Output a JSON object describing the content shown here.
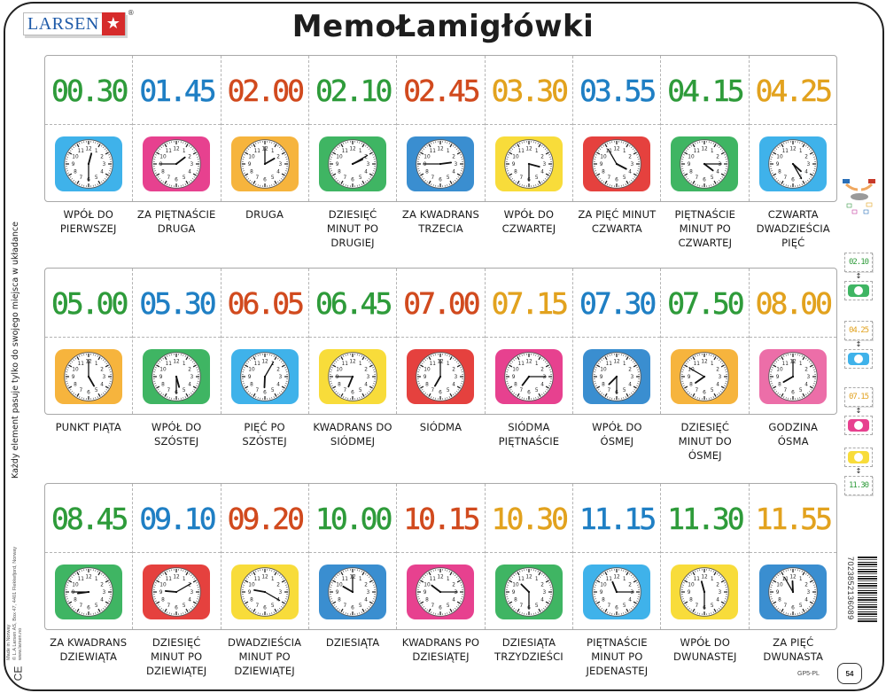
{
  "header": {
    "brand": "LARSEN",
    "brand_mark": "®",
    "title": "MemoŁamigłówki"
  },
  "side_text": {
    "instruction": "Każdy element pasuje tylko do swojego miejsca w układance",
    "made_in": "Made in Norway",
    "address": "© L.A Larsen AS, Box 47, 4401 Flekkefjord, Norway",
    "website": "www.larsen.no",
    "ce_mark": "CE"
  },
  "colors": {
    "green": "#2e9b3a",
    "blue": "#1f7fc4",
    "red": "#d14a1e",
    "orange": "#e2a21e",
    "tile_lightblue": "#3fb2ea",
    "tile_blue": "#3a8ed0",
    "tile_magenta": "#e7418f",
    "tile_pink": "#ec6ea8",
    "tile_orange": "#f6b43d",
    "tile_yellow": "#f8dc3a",
    "tile_green": "#3fb563",
    "tile_red": "#e5413e"
  },
  "rows": [
    {
      "cards": [
        {
          "time": "00.30",
          "digit_color": "green",
          "tile": "tile_lightblue",
          "h": 0,
          "m": 30,
          "label": [
            "WPÓŁ DO",
            "PIERWSZEJ"
          ]
        },
        {
          "time": "01.45",
          "digit_color": "blue",
          "tile": "tile_magenta",
          "h": 1,
          "m": 45,
          "label": [
            "ZA PIĘTNAŚCIE",
            "DRUGA"
          ]
        },
        {
          "time": "02.00",
          "digit_color": "red",
          "tile": "tile_orange",
          "h": 2,
          "m": 0,
          "label": [
            "DRUGA"
          ]
        },
        {
          "time": "02.10",
          "digit_color": "green",
          "tile": "tile_green",
          "h": 2,
          "m": 10,
          "label": [
            "DZIESIĘĆ",
            "MINUT PO",
            "DRUGIEJ"
          ]
        },
        {
          "time": "02.45",
          "digit_color": "red",
          "tile": "tile_blue",
          "h": 2,
          "m": 45,
          "label": [
            "ZA KWADRANS",
            "TRZECIA"
          ]
        },
        {
          "time": "03.30",
          "digit_color": "orange",
          "tile": "tile_yellow",
          "h": 3,
          "m": 30,
          "label": [
            "WPÓŁ DO",
            "CZWARTEJ"
          ]
        },
        {
          "time": "03.55",
          "digit_color": "blue",
          "tile": "tile_red",
          "h": 3,
          "m": 55,
          "label": [
            "ZA PIĘĆ MINUT",
            "CZWARTA"
          ]
        },
        {
          "time": "04.15",
          "digit_color": "green",
          "tile": "tile_green",
          "h": 4,
          "m": 15,
          "label": [
            "PIĘTNAŚCIE",
            "MINUT PO",
            "CZWARTEJ"
          ]
        },
        {
          "time": "04.25",
          "digit_color": "orange",
          "tile": "tile_lightblue",
          "h": 4,
          "m": 25,
          "label": [
            "CZWARTA",
            "DWADZIEŚCIA",
            "PIĘĆ"
          ]
        }
      ]
    },
    {
      "cards": [
        {
          "time": "05.00",
          "digit_color": "green",
          "tile": "tile_orange",
          "h": 5,
          "m": 0,
          "label": [
            "PUNKT PIĄTA"
          ]
        },
        {
          "time": "05.30",
          "digit_color": "blue",
          "tile": "tile_green",
          "h": 5,
          "m": 30,
          "label": [
            "WPÓŁ DO",
            "SZÓSTEJ"
          ]
        },
        {
          "time": "06.05",
          "digit_color": "red",
          "tile": "tile_lightblue",
          "h": 6,
          "m": 5,
          "label": [
            "PIĘĆ PO",
            "SZÓSTEJ"
          ]
        },
        {
          "time": "06.45",
          "digit_color": "green",
          "tile": "tile_yellow",
          "h": 6,
          "m": 45,
          "label": [
            "KWADRANS DO",
            "SIÓDMEJ"
          ]
        },
        {
          "time": "07.00",
          "digit_color": "red",
          "tile": "tile_red",
          "h": 7,
          "m": 0,
          "label": [
            "SIÓDMA"
          ]
        },
        {
          "time": "07.15",
          "digit_color": "orange",
          "tile": "tile_magenta",
          "h": 7,
          "m": 15,
          "label": [
            "SIÓDMA",
            "PIĘTNAŚCIE"
          ]
        },
        {
          "time": "07.30",
          "digit_color": "blue",
          "tile": "tile_blue",
          "h": 7,
          "m": 30,
          "label": [
            "WPÓŁ DO",
            "ÓSMEJ"
          ]
        },
        {
          "time": "07.50",
          "digit_color": "green",
          "tile": "tile_orange",
          "h": 7,
          "m": 50,
          "label": [
            "DZIESIĘĆ",
            "MINUT DO",
            "ÓSMEJ"
          ]
        },
        {
          "time": "08.00",
          "digit_color": "orange",
          "tile": "tile_pink",
          "h": 8,
          "m": 0,
          "label": [
            "GODZINA",
            "ÓSMA"
          ]
        }
      ]
    },
    {
      "cards": [
        {
          "time": "08.45",
          "digit_color": "green",
          "tile": "tile_green",
          "h": 8,
          "m": 45,
          "label": [
            "ZA KWADRANS",
            "DZIEWIĄTA"
          ]
        },
        {
          "time": "09.10",
          "digit_color": "blue",
          "tile": "tile_red",
          "h": 9,
          "m": 10,
          "label": [
            "DZIESIĘĆ",
            "MINUT PO",
            "DZIEWIĄTEJ"
          ]
        },
        {
          "time": "09.20",
          "digit_color": "red",
          "tile": "tile_yellow",
          "h": 9,
          "m": 20,
          "label": [
            "DWADZIEŚCIA",
            "MINUT PO",
            "DZIEWIĄTEJ"
          ]
        },
        {
          "time": "10.00",
          "digit_color": "green",
          "tile": "tile_blue",
          "h": 10,
          "m": 0,
          "label": [
            "DZIESIĄTA"
          ]
        },
        {
          "time": "10.15",
          "digit_color": "red",
          "tile": "tile_magenta",
          "h": 10,
          "m": 15,
          "label": [
            "KWADRANS PO",
            "DZIESIĄTEJ"
          ]
        },
        {
          "time": "10.30",
          "digit_color": "orange",
          "tile": "tile_green",
          "h": 10,
          "m": 30,
          "label": [
            "DZIESIĄTA",
            "TRZYDZIEŚCI"
          ]
        },
        {
          "time": "11.15",
          "digit_color": "blue",
          "tile": "tile_lightblue",
          "h": 11,
          "m": 15,
          "label": [
            "PIĘTNAŚCIE",
            "MINUT PO",
            "JEDENASTEJ"
          ]
        },
        {
          "time": "11.30",
          "digit_color": "green",
          "tile": "tile_yellow",
          "h": 11,
          "m": 30,
          "label": [
            "WPÓŁ DO",
            "DWUNASTEJ"
          ]
        },
        {
          "time": "11.55",
          "digit_color": "orange",
          "tile": "tile_blue",
          "h": 11,
          "m": 55,
          "label": [
            "ZA PIĘĆ",
            "DWUNASTA"
          ]
        }
      ]
    }
  ],
  "sidebar_examples": [
    {
      "time": "02.10",
      "digit_color": "green",
      "tile": "tile_green"
    },
    {
      "time": "04.25",
      "digit_color": "orange",
      "tile": "tile_lightblue"
    },
    {
      "time": "07.15",
      "digit_color": "orange",
      "tile": "tile_magenta"
    },
    {
      "time": "11.30",
      "digit_color": "green",
      "tile": "tile_yellow"
    }
  ],
  "footer": {
    "barcode_number": "7023852136089",
    "product_code": "GP5-PL",
    "piece_count": "54"
  }
}
